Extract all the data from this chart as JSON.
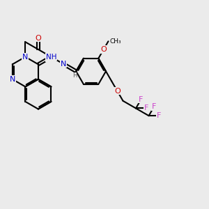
{
  "bg_color": "#ebebeb",
  "bond_color": "#000000",
  "bond_width": 1.5,
  "atom_colors": {
    "N": "#0000cc",
    "O": "#cc0000",
    "F": "#cc44cc",
    "H": "#555555"
  },
  "font_size": 8.0,
  "figsize": [
    3.0,
    3.0
  ],
  "dpi": 100
}
